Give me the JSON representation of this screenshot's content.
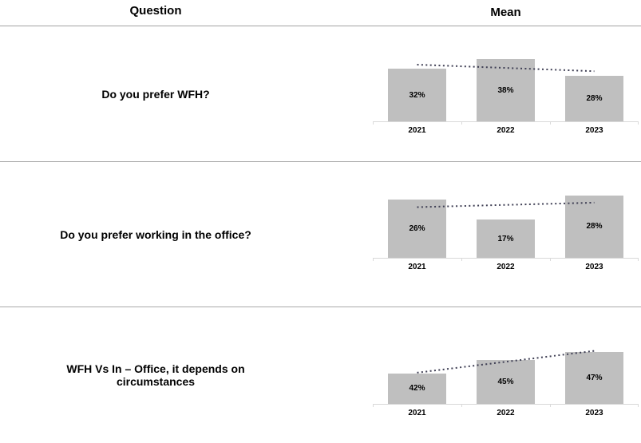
{
  "header": {
    "question_label": "Question",
    "mean_label": "Mean"
  },
  "colors": {
    "bar": "#bfbfbf",
    "axis": "#d9d9d9",
    "trend": "#3f3f54",
    "separator": "#a6a6a6"
  },
  "chart_data": [
    {
      "type": "bar",
      "question": "Do you prefer WFH?",
      "categories": [
        "2021",
        "2022",
        "2023"
      ],
      "values": [
        32,
        38,
        28
      ],
      "data_labels": [
        "32%",
        "38%",
        "28%"
      ],
      "ylim": [
        0,
        41
      ],
      "trendline": "linear-dotted",
      "legend": "none",
      "grid": false
    },
    {
      "type": "bar",
      "question": "Do you prefer working in the office?",
      "categories": [
        "2021",
        "2022",
        "2023"
      ],
      "values": [
        26,
        17,
        28
      ],
      "data_labels": [
        "26%",
        "17%",
        "28%"
      ],
      "ylim": [
        0,
        30
      ],
      "trendline": "linear-dotted",
      "legend": "none",
      "grid": false
    },
    {
      "type": "bar",
      "question": "WFH Vs In – Office, it depends on circumstances",
      "categories": [
        "2021",
        "2022",
        "2023"
      ],
      "values": [
        42,
        45,
        47
      ],
      "data_labels": [
        "42%",
        "45%",
        "47%"
      ],
      "ylim": [
        35,
        48
      ],
      "trendline": "linear-dotted",
      "legend": "none",
      "grid": false
    }
  ]
}
